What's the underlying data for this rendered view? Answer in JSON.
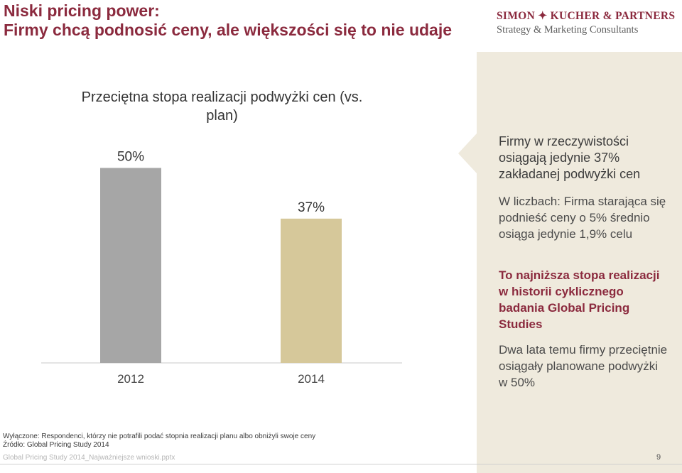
{
  "header": {
    "title_line1": "Niski pricing power:",
    "title_line2": "Firmy chcą podnosić ceny, ale większości się to nie udaje",
    "logo_line1": "SIMON ✦ KUCHER & PARTNERS",
    "logo_line2": "Strategy & Marketing Consultants"
  },
  "chart_data": {
    "type": "bar",
    "title": "Przeciętna stopa realizacji podwyżki cen (vs. plan)",
    "categories": [
      "2012",
      "2014"
    ],
    "values": [
      50,
      37
    ],
    "value_labels": [
      "50%",
      "37%"
    ],
    "colors": [
      "#a6a6a6",
      "#d6c89a"
    ],
    "ylim": [
      0,
      55
    ],
    "xlabel": "",
    "ylabel": "",
    "grid": false
  },
  "panel": {
    "heading": "Firmy w rzeczywistości osiągają jedynie 37% zakładanej podwyżki cen",
    "body1": "W liczbach: Firma starająca się podnieść ceny o 5% średnio osiąga jedynie 1,9% celu",
    "accent": "To najniższa stopa realizacji w historii cyklicznego badania Global Pricing Studies",
    "body2": "Dwa lata temu firmy przeciętnie osiągały planowane podwyżki w 50%",
    "accent_color": "#8b2a3e",
    "background_color": "#efeadd"
  },
  "footer": {
    "note1": "Wyłączone: Respondenci, którzy nie potrafili podać stopnia realizacji planu albo obniżyli swoje ceny",
    "note2": "Źródło: Global Pricing Study 2014",
    "filename": "Global Pricing Study 2014_Najważniejsze wnioski.pptx",
    "page_number": "9"
  }
}
